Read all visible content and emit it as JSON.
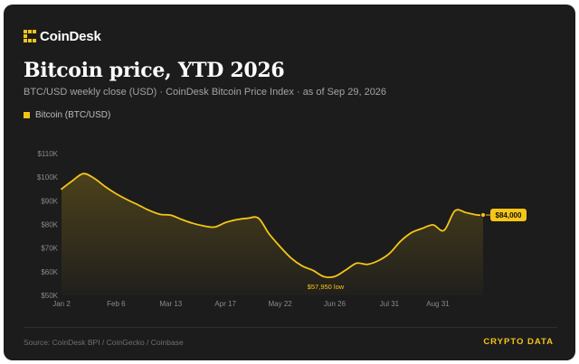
{
  "brand": {
    "name": "CoinDesk",
    "accent_color": "#f5c518",
    "icon": "coindesk-logo-icon"
  },
  "header": {
    "title": "Bitcoin price, YTD 2026",
    "subtitle": "BTC/USD weekly close (USD) · CoinDesk Bitcoin Price Index · as of Sep 29, 2026"
  },
  "footer": {
    "source": "Source: CoinDesk BPI / CoinGecko / Coinbase",
    "section": "CRYPTO DATA"
  },
  "chart_data": {
    "type": "area",
    "title": "Bitcoin price, YTD 2026",
    "subtitle": "BTC/USD weekly close (USD) · CoinDesk Bitcoin Price Index · as of Sep 29, 2026",
    "legend": {
      "placement": "top-left",
      "entries": [
        "Bitcoin (BTC/USD)"
      ]
    },
    "grid": false,
    "xlim": [
      "2026-01-02",
      "2026-09-29"
    ],
    "ylim": [
      50000,
      110000
    ],
    "y_ticks": [
      50000,
      60000,
      70000,
      80000,
      90000,
      100000,
      110000
    ],
    "y_tick_labels": [
      "$50K",
      "$60K",
      "$70K",
      "$80K",
      "$90K",
      "$100K",
      "$110K"
    ],
    "x_ticks": [
      "2026-01-02",
      "2026-02-06",
      "2026-03-13",
      "2026-04-17",
      "2026-05-22",
      "2026-06-26",
      "2026-07-31",
      "2026-08-31"
    ],
    "x_tick_labels": [
      "Jan 2",
      "Feb 6",
      "Mar 13",
      "Apr 17",
      "May 22",
      "Jun 26",
      "Jul 31",
      "Aug 31"
    ],
    "series": [
      {
        "name": "Bitcoin (BTC/USD)",
        "color": "#f5c518",
        "x": [
          "2026-01-02",
          "2026-01-09",
          "2026-01-16",
          "2026-01-23",
          "2026-01-30",
          "2026-02-06",
          "2026-02-13",
          "2026-02-20",
          "2026-02-27",
          "2026-03-06",
          "2026-03-13",
          "2026-03-20",
          "2026-03-27",
          "2026-04-03",
          "2026-04-10",
          "2026-04-17",
          "2026-04-24",
          "2026-05-01",
          "2026-05-08",
          "2026-05-15",
          "2026-05-22",
          "2026-05-29",
          "2026-06-05",
          "2026-06-12",
          "2026-06-19",
          "2026-06-26",
          "2026-07-03",
          "2026-07-10",
          "2026-07-17",
          "2026-07-24",
          "2026-07-31",
          "2026-08-07",
          "2026-08-14",
          "2026-08-21",
          "2026-08-28",
          "2026-09-04",
          "2026-09-11",
          "2026-09-18",
          "2026-09-25",
          "2026-09-29"
        ],
        "y": [
          95000,
          98500,
          101500,
          99500,
          96000,
          93000,
          90500,
          88300,
          86000,
          84300,
          83900,
          82100,
          80500,
          79400,
          78900,
          80800,
          82000,
          82600,
          82700,
          76000,
          70600,
          65800,
          62500,
          60600,
          57950,
          58000,
          60700,
          63600,
          63100,
          64700,
          67700,
          72800,
          76500,
          78300,
          79800,
          77500,
          85800,
          85000,
          84000,
          84000
        ]
      }
    ],
    "annotations": [
      {
        "text": "$57,950 low",
        "x": "2026-06-19",
        "y": 57950
      },
      {
        "text": "$84,000",
        "x": "2026-09-29",
        "y": 84000
      }
    ]
  }
}
